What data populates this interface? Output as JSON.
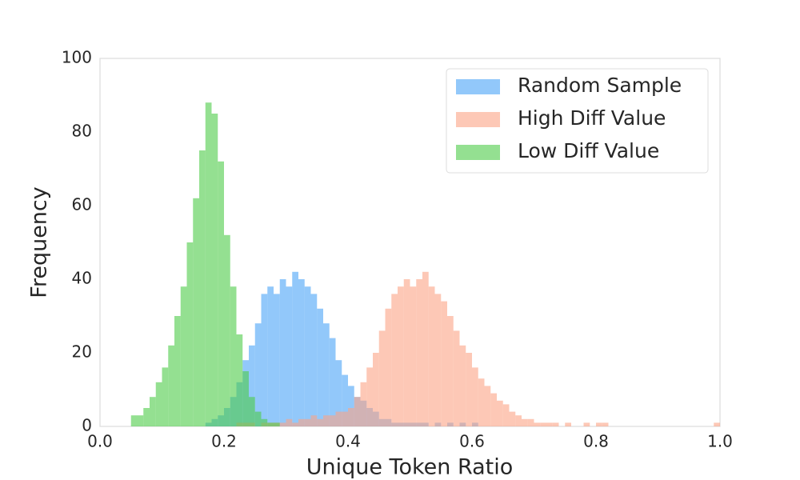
{
  "chart_data": {
    "type": "histogram",
    "xlabel": "Unique Token Ratio",
    "ylabel": "Frequency",
    "xlim": [
      0,
      1
    ],
    "ylim": [
      0,
      100
    ],
    "xticks": [
      {
        "value": 0,
        "label": "0.0"
      },
      0.2,
      0.4,
      0.6,
      0.8,
      {
        "value": 1,
        "label": "1.0"
      }
    ],
    "yticks": [
      0,
      20,
      40,
      60,
      80,
      100
    ],
    "legend": "upper right",
    "opacity": 0.6,
    "series": [
      {
        "name": "Random Sample",
        "color": "#4aa3f7",
        "bins": [
          0.17,
          0.18,
          0.19,
          0.2,
          0.21,
          0.22,
          0.23,
          0.24,
          0.25,
          0.26,
          0.27,
          0.28,
          0.29,
          0.3,
          0.31,
          0.32,
          0.33,
          0.34,
          0.35,
          0.36,
          0.37,
          0.38,
          0.39,
          0.4,
          0.41,
          0.42,
          0.43,
          0.44,
          0.45,
          0.46,
          0.47,
          0.48,
          0.49,
          0.5,
          0.51,
          0.52,
          0.53,
          0.54,
          0.55,
          0.56,
          0.57,
          0.58,
          0.59,
          0.6,
          0.61
        ],
        "values": [
          1,
          2,
          3,
          5,
          8,
          12,
          18,
          22,
          28,
          36,
          38,
          36,
          40,
          38,
          42,
          40,
          38,
          36,
          32,
          28,
          24,
          18,
          14,
          11,
          8,
          7,
          5,
          4,
          2,
          2,
          1,
          1,
          1,
          1,
          1,
          1,
          0,
          1,
          0,
          1,
          0,
          1,
          0,
          1
        ]
      },
      {
        "name": "High Diff Value",
        "color": "#fca486",
        "bins": [
          0.22,
          0.23,
          0.24,
          0.25,
          0.26,
          0.27,
          0.28,
          0.29,
          0.3,
          0.31,
          0.32,
          0.33,
          0.34,
          0.35,
          0.36,
          0.37,
          0.38,
          0.39,
          0.4,
          0.41,
          0.42,
          0.43,
          0.44,
          0.45,
          0.46,
          0.47,
          0.48,
          0.49,
          0.5,
          0.51,
          0.52,
          0.53,
          0.54,
          0.55,
          0.56,
          0.57,
          0.58,
          0.59,
          0.6,
          0.61,
          0.62,
          0.63,
          0.64,
          0.65,
          0.66,
          0.67,
          0.68,
          0.69,
          0.7,
          0.71,
          0.72,
          0.73,
          0.74,
          0.75,
          0.76,
          0.77,
          0.78,
          0.79,
          0.8,
          0.81,
          0.82,
          0.83,
          0.84,
          0.85,
          0.86,
          0.87,
          0.88,
          0.89,
          0.9,
          0.91,
          0.92,
          0.93,
          0.94,
          0.95,
          0.96,
          0.97,
          0.98,
          0.99,
          1.0
        ],
        "values": [
          1,
          1,
          1,
          0,
          1,
          1,
          1,
          1,
          2,
          1,
          2,
          2,
          3,
          2,
          3,
          3,
          4,
          4,
          5,
          8,
          12,
          16,
          20,
          26,
          32,
          36,
          38,
          40,
          38,
          40,
          42,
          38,
          36,
          34,
          30,
          26,
          22,
          20,
          16,
          13,
          11,
          9,
          7,
          6,
          4,
          3,
          2,
          2,
          1,
          1,
          1,
          1,
          0,
          1,
          0,
          0,
          1,
          0,
          1,
          1,
          0,
          0,
          0,
          0,
          0,
          0,
          0,
          0,
          0,
          0,
          0,
          0,
          0,
          0,
          0,
          0,
          0,
          1
        ]
      },
      {
        "name": "Low Diff Value",
        "color": "#4ccb48",
        "bins": [
          0.05,
          0.06,
          0.07,
          0.08,
          0.09,
          0.1,
          0.11,
          0.12,
          0.13,
          0.14,
          0.15,
          0.16,
          0.17,
          0.18,
          0.19,
          0.2,
          0.21,
          0.22,
          0.23,
          0.24,
          0.25,
          0.26,
          0.27,
          0.28,
          0.29,
          0.3,
          0.31,
          0.32
        ],
        "values": [
          3,
          3,
          5,
          8,
          12,
          16,
          22,
          30,
          38,
          50,
          62,
          75,
          88,
          85,
          72,
          52,
          38,
          25,
          15,
          8,
          4,
          2,
          1,
          1,
          0,
          0,
          0
        ]
      }
    ]
  }
}
